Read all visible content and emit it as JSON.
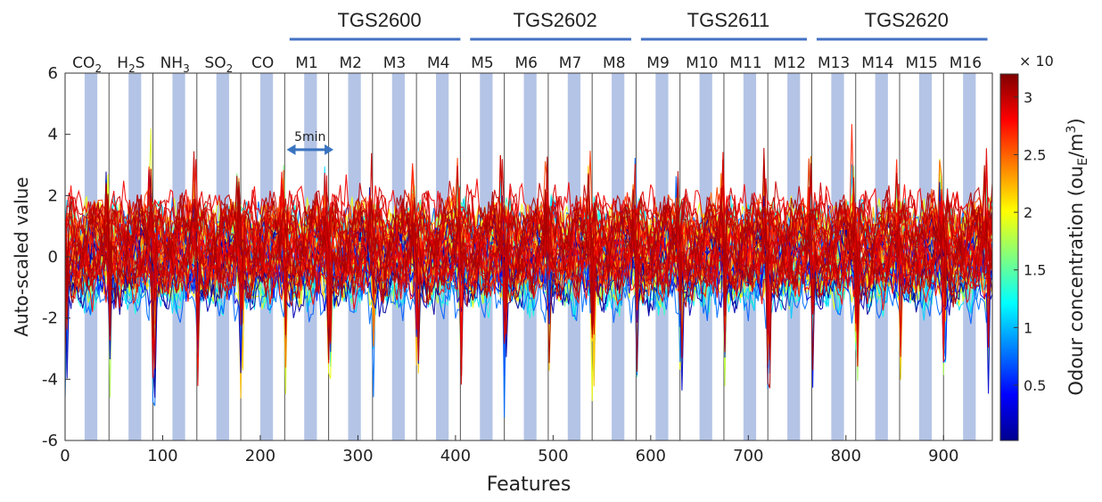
{
  "chart_data": {
    "type": "line",
    "xlabel": "Features",
    "ylabel": "Auto-scaled value",
    "xlim": [
      0,
      950
    ],
    "ylim": [
      -6,
      6
    ],
    "x_ticks": [
      0,
      100,
      200,
      300,
      400,
      500,
      600,
      700,
      800,
      900
    ],
    "y_ticks": [
      -6,
      -4,
      -2,
      0,
      2,
      4,
      6
    ],
    "grid": false,
    "segment_width": 45,
    "segment_boundaries": [
      45,
      90,
      135,
      180,
      225,
      270,
      315,
      360,
      405,
      450,
      495,
      540,
      585,
      630,
      675,
      720,
      765,
      810,
      855,
      900
    ],
    "segments": [
      {
        "label": "CO",
        "sub": "2",
        "band": [
          20,
          33
        ]
      },
      {
        "label": "H",
        "sub": "2",
        "tail": "S",
        "band": [
          65,
          78
        ]
      },
      {
        "label": "NH",
        "sub": "3",
        "band": [
          110,
          123
        ]
      },
      {
        "label": "SO",
        "sub": "2",
        "band": [
          155,
          168
        ]
      },
      {
        "label": "CO",
        "band": [
          200,
          213
        ]
      },
      {
        "label": "M1",
        "band": [
          245,
          258
        ]
      },
      {
        "label": "M2",
        "band": [
          290,
          303
        ]
      },
      {
        "label": "M3",
        "band": [
          335,
          348
        ]
      },
      {
        "label": "M4",
        "band": [
          380,
          393
        ]
      },
      {
        "label": "M5",
        "band": [
          425,
          438
        ]
      },
      {
        "label": "M6",
        "band": [
          470,
          483
        ]
      },
      {
        "label": "M7",
        "band": [
          515,
          528
        ]
      },
      {
        "label": "M8",
        "band": [
          560,
          573
        ]
      },
      {
        "label": "M9",
        "band": [
          605,
          618
        ]
      },
      {
        "label": "M10",
        "band": [
          650,
          663
        ]
      },
      {
        "label": "M11",
        "band": [
          695,
          708
        ]
      },
      {
        "label": "M12",
        "band": [
          740,
          753
        ]
      },
      {
        "label": "M13",
        "band": [
          785,
          798
        ]
      },
      {
        "label": "M14",
        "band": [
          830,
          843
        ]
      },
      {
        "label": "M15",
        "band": [
          875,
          888
        ]
      },
      {
        "label": "M16",
        "band": [
          920,
          933
        ]
      }
    ],
    "sensor_groups": [
      {
        "name": "TGS2600",
        "x_range": [
          230,
          405
        ]
      },
      {
        "name": "TGS2602",
        "x_range": [
          415,
          580
        ]
      },
      {
        "name": "TGS2611",
        "x_range": [
          590,
          760
        ]
      },
      {
        "name": "TGS2620",
        "x_range": [
          770,
          945
        ]
      }
    ],
    "annotation": {
      "text": "5min",
      "x_range": [
        227,
        275
      ],
      "y": 3.5
    },
    "colorbar": {
      "label": "Odour concentration (ou",
      "label_sub": "E",
      "label_tail": "/m",
      "label_sup": "3",
      "label_close": ")",
      "exponent_text": "× 10",
      "range": [
        0.02,
        3.2
      ],
      "ticks": [
        0.5,
        1,
        1.5,
        2,
        2.5,
        3
      ],
      "tick_labels": [
        "0.5",
        "1",
        "1.5",
        "2",
        "2.5",
        "3"
      ],
      "colormap": "jet"
    },
    "series_count": 60,
    "series_concentration_range": [
      0.05,
      3.1
    ],
    "series_note_values": {
      "typical_range": [
        -4,
        3
      ],
      "peak_max": 4.3,
      "trough_min": -5.4
    }
  },
  "colors": {
    "band": "#b4c4e6",
    "divider": "#555555",
    "sensor_bar": "#4472c4",
    "arrow": "#3a74c0"
  }
}
